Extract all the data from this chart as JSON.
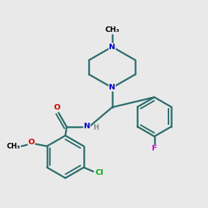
{
  "bg_color": "#e9e9e9",
  "atom_colors": {
    "N": "#0000cc",
    "O": "#cc0000",
    "F": "#cc00cc",
    "Cl": "#00aa00",
    "C": "#000000",
    "H": "#888888"
  },
  "bond_color": "#2d6e6e",
  "bond_width": 1.8,
  "font_size_atom": 8,
  "font_size_small": 7
}
